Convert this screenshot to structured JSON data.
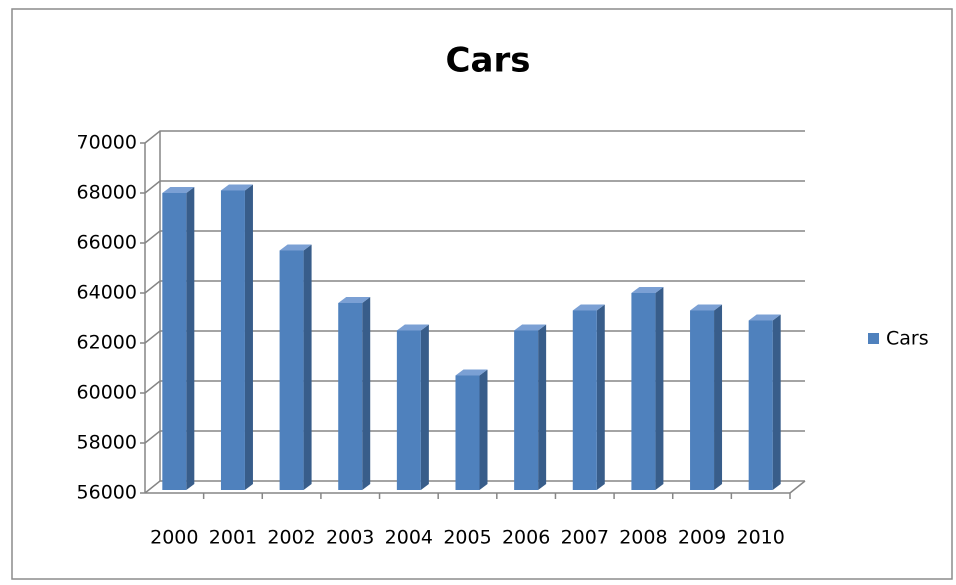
{
  "chart_data": {
    "type": "bar",
    "title": "Cars",
    "categories": [
      "2000",
      "2001",
      "2002",
      "2003",
      "2004",
      "2005",
      "2006",
      "2007",
      "2008",
      "2009",
      "2010"
    ],
    "series": [
      {
        "name": "Cars",
        "color": "#4f81bd",
        "values": [
          68000,
          68100,
          65700,
          63600,
          62500,
          60700,
          62500,
          63300,
          64000,
          63300,
          62900
        ]
      }
    ],
    "ylim": [
      56000,
      70000
    ],
    "yticks": [
      56000,
      58000,
      60000,
      62000,
      64000,
      66000,
      68000,
      70000
    ],
    "grid": true,
    "legend": "right"
  }
}
